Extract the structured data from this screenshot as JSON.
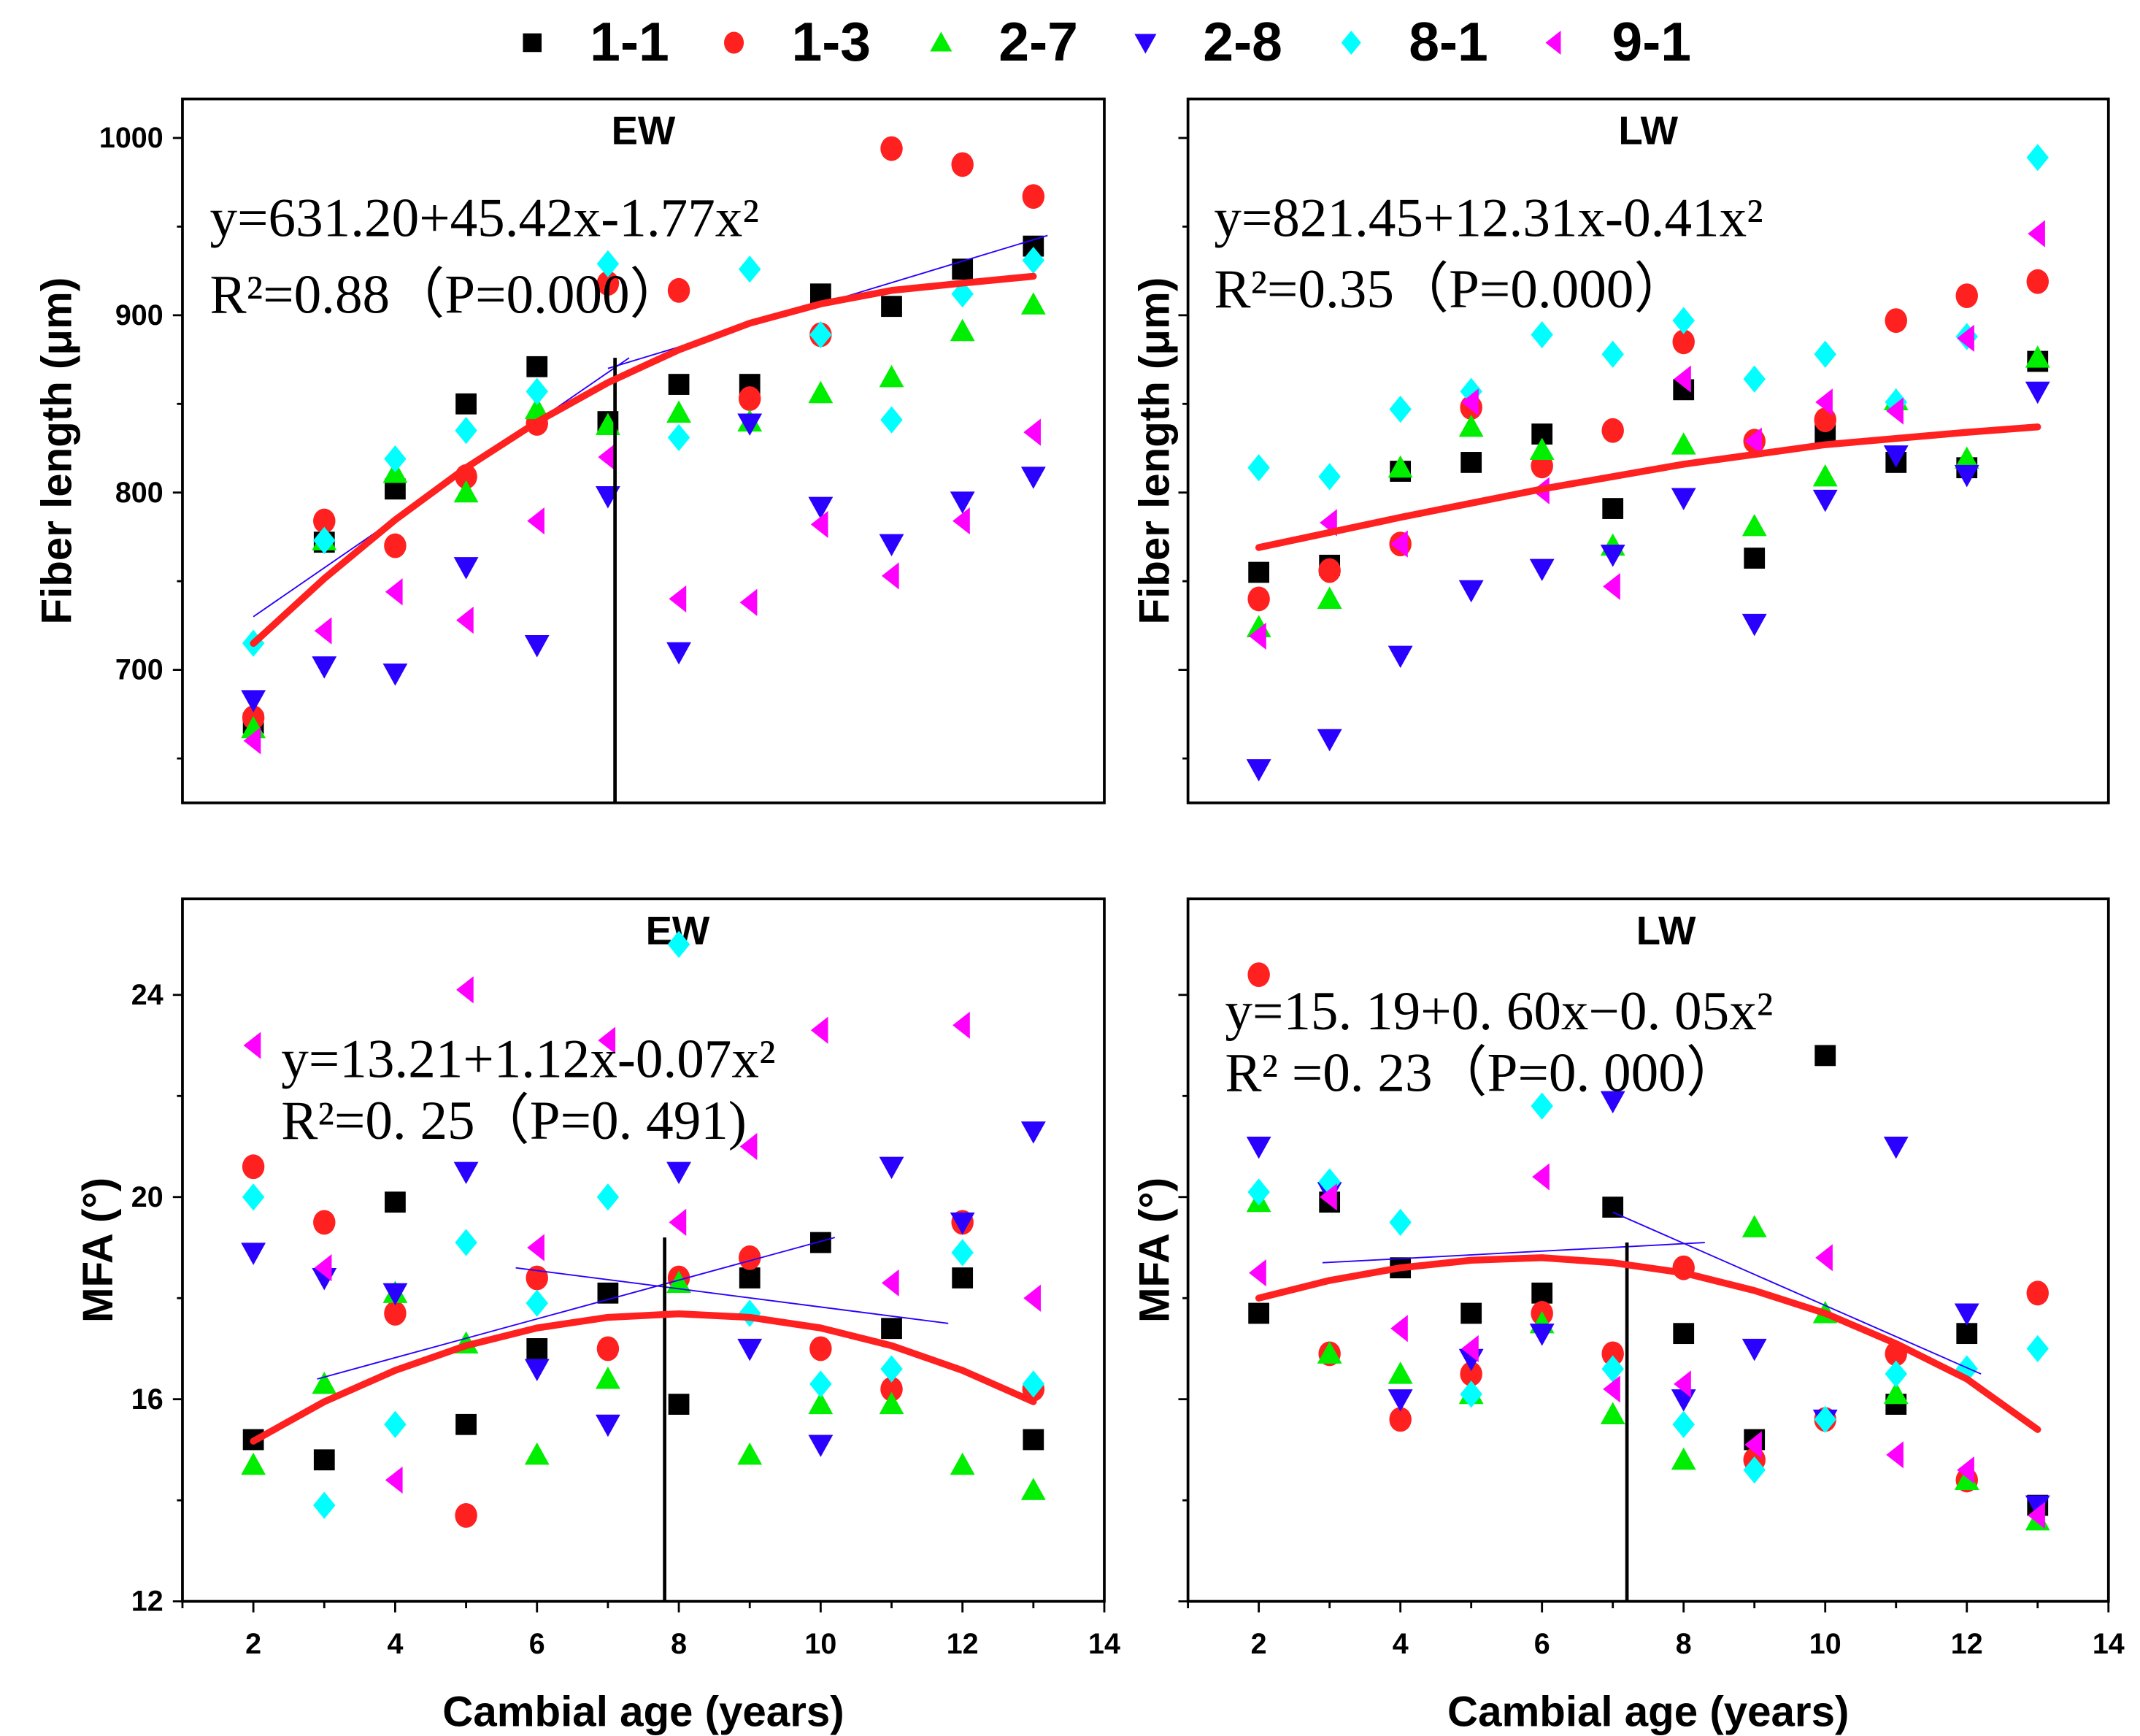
{
  "legend": [
    {
      "name": "1-1",
      "marker": "square",
      "color": "#000000"
    },
    {
      "name": "1-3",
      "marker": "circle",
      "color": "#ff2020"
    },
    {
      "name": "2-7",
      "marker": "triangle-up",
      "color": "#00ee00"
    },
    {
      "name": "2-8",
      "marker": "triangle-down",
      "color": "#2a00ff"
    },
    {
      "name": "8-1",
      "marker": "diamond",
      "color": "#00ffff"
    },
    {
      "name": "9-1",
      "marker": "triangle-left",
      "color": "#ff00ff"
    }
  ],
  "chart_data": [
    {
      "type": "scatter",
      "title": "EW",
      "xlabel": "",
      "ylabel": "Fiber length (μm)",
      "xlim": [
        1,
        14
      ],
      "ylim": [
        625,
        1022
      ],
      "xticks": [],
      "yticks": [
        "700",
        "800",
        "900",
        "1000"
      ],
      "equation": "y=631.20+45.42x-1.77x²",
      "r2": "R²=0.88（P=0.000）",
      "fit": [
        [
          2,
          714.9
        ],
        [
          3,
          751.5
        ],
        [
          4,
          784.6
        ],
        [
          5,
          814.0
        ],
        [
          6,
          839.8
        ],
        [
          7,
          862.0
        ],
        [
          8,
          880.5
        ],
        [
          9,
          895.5
        ],
        [
          10,
          906.4
        ],
        [
          11,
          914.0
        ],
        [
          12,
          918.1
        ],
        [
          13,
          922
        ]
      ],
      "segments": [
        [
          [
            2,
            730
          ],
          [
            7.3,
            876
          ]
        ],
        [
          [
            7,
            870
          ],
          [
            13.2,
            945
          ]
        ]
      ],
      "breakpoint": 7.1,
      "x": [
        2,
        3,
        4,
        5,
        6,
        7,
        8,
        9,
        10,
        11,
        12,
        13
      ],
      "series": [
        {
          "name": "1-1",
          "values": [
            670,
            772,
            802,
            850,
            871,
            840,
            861,
            861,
            912,
            905,
            926,
            939
          ]
        },
        {
          "name": "1-3",
          "values": [
            673,
            784,
            770,
            809,
            839,
            918,
            914,
            853,
            889,
            994,
            985,
            967
          ]
        },
        {
          "name": "2-7",
          "values": [
            667,
            773,
            811,
            800,
            847,
            838,
            845,
            840,
            856,
            865,
            891,
            906
          ]
        },
        {
          "name": "2-8",
          "values": [
            683,
            702,
            698,
            758,
            714,
            798,
            710,
            839,
            792,
            771,
            795,
            809
          ]
        },
        {
          "name": "8-1",
          "values": [
            715,
            773,
            819,
            835,
            857,
            929,
            831,
            926,
            889,
            841,
            912,
            931
          ]
        },
        {
          "name": "9-1",
          "values": [
            660,
            722,
            744,
            728,
            784,
            820,
            740,
            738,
            782,
            753,
            784,
            834
          ]
        }
      ]
    },
    {
      "type": "scatter",
      "title": "LW",
      "xlabel": "",
      "ylabel": "Fiber length (μm)",
      "xlim": [
        1,
        14
      ],
      "ylim": [
        625,
        1022
      ],
      "xticks": [],
      "yticks": [],
      "equation": "y=821.45+12.31x-0.41x²",
      "r2": "R²=0.35（P=0.000）",
      "fit": [
        [
          2,
          769
        ],
        [
          4,
          786
        ],
        [
          6,
          802
        ],
        [
          8,
          816
        ],
        [
          10,
          827
        ],
        [
          12,
          834
        ],
        [
          13,
          837
        ]
      ],
      "segments": [],
      "breakpoint": null,
      "x": [
        2,
        3,
        4,
        5,
        6,
        7,
        8,
        9,
        10,
        11,
        12,
        13
      ],
      "series": [
        {
          "name": "1-1",
          "values": [
            755,
            759,
            812,
            817,
            833,
            791,
            858,
            763,
            833,
            817,
            814,
            874
          ]
        },
        {
          "name": "1-3",
          "values": [
            740,
            756,
            771,
            848,
            815,
            835,
            885,
            829,
            841,
            897,
            911,
            919
          ]
        },
        {
          "name": "2-7",
          "values": [
            724,
            740,
            814,
            837,
            824,
            770,
            827,
            781,
            809,
            852,
            819,
            876
          ]
        },
        {
          "name": "2-8",
          "values": [
            644,
            661,
            708,
            745,
            757,
            765,
            797,
            726,
            796,
            821,
            810,
            857
          ]
        },
        {
          "name": "8-1",
          "values": [
            814,
            809,
            847,
            857,
            889,
            878,
            897,
            864,
            878,
            851,
            888,
            989
          ]
        },
        {
          "name": "9-1",
          "values": [
            719,
            783,
            771,
            851,
            801,
            747,
            864,
            829,
            851,
            846,
            887,
            946
          ]
        }
      ]
    },
    {
      "type": "scatter",
      "title": "EW",
      "xlabel": "Cambial age (years)",
      "ylabel": "MFA (°)",
      "xlim": [
        1,
        14
      ],
      "ylim": [
        12,
        25.9
      ],
      "xticks": [
        "2",
        "4",
        "6",
        "8",
        "10",
        "12",
        "14"
      ],
      "yticks": [
        "12",
        "16",
        "20",
        "24"
      ],
      "equation": "y=13.21+1.12x-0.07x²",
      "r2": "R²=0. 25（P=0. 491)",
      "fit": [
        [
          2,
          15.17
        ],
        [
          3,
          15.95
        ],
        [
          4,
          16.57
        ],
        [
          5,
          17.06
        ],
        [
          6,
          17.41
        ],
        [
          7,
          17.62
        ],
        [
          8,
          17.69
        ],
        [
          9,
          17.62
        ],
        [
          10,
          17.41
        ],
        [
          11,
          17.06
        ],
        [
          12,
          16.57
        ],
        [
          13,
          15.95
        ]
      ],
      "segments": [
        [
          [
            2.9,
            16.4
          ],
          [
            10.2,
            19.2
          ]
        ],
        [
          [
            5.7,
            18.6
          ],
          [
            11.8,
            17.5
          ]
        ]
      ],
      "breakpoint": 7.8,
      "x": [
        2,
        3,
        4,
        5,
        6,
        7,
        8,
        9,
        10,
        11,
        12,
        13
      ],
      "series": [
        {
          "name": "1-1",
          "values": [
            15.2,
            14.8,
            19.9,
            15.5,
            17.0,
            18.1,
            15.9,
            18.4,
            19.1,
            17.4,
            18.4,
            15.2
          ]
        },
        {
          "name": "1-3",
          "values": [
            20.6,
            19.5,
            17.7,
            13.7,
            18.4,
            17.0,
            18.4,
            18.8,
            17.0,
            16.2,
            19.5,
            16.2
          ]
        },
        {
          "name": "2-7",
          "values": [
            14.7,
            16.3,
            18.1,
            17.1,
            14.9,
            16.4,
            18.3,
            14.9,
            15.9,
            15.9,
            14.7,
            14.2
          ]
        },
        {
          "name": "2-8",
          "values": [
            18.9,
            18.4,
            18.1,
            20.5,
            16.6,
            15.5,
            20.5,
            17.0,
            15.1,
            20.6,
            19.5,
            21.3
          ]
        },
        {
          "name": "8-1",
          "values": [
            20.0,
            13.9,
            15.5,
            19.1,
            17.9,
            20.0,
            25.0,
            17.7,
            16.3,
            16.6,
            18.9,
            16.3
          ]
        },
        {
          "name": "9-1",
          "values": [
            23.0,
            18.6,
            14.4,
            24.1,
            19.0,
            23.1,
            19.5,
            21.0,
            23.3,
            18.3,
            23.4,
            18.0
          ]
        }
      ]
    },
    {
      "type": "scatter",
      "title": "LW",
      "xlabel": "Cambial age (years)",
      "ylabel": "MFA (°)",
      "xlim": [
        1,
        14
      ],
      "ylim": [
        12,
        25.9
      ],
      "xticks": [
        "2",
        "4",
        "6",
        "8",
        "10",
        "12",
        "14"
      ],
      "yticks": [],
      "equation": "y=15. 19+0. 60x−0. 05x²",
      "r2": "R² =0. 23（P=0. 000）",
      "fit": [
        [
          2,
          18.0
        ],
        [
          3,
          18.35
        ],
        [
          4,
          18.6
        ],
        [
          5,
          18.75
        ],
        [
          6,
          18.8
        ],
        [
          7,
          18.7
        ],
        [
          8,
          18.5
        ],
        [
          9,
          18.15
        ],
        [
          10,
          17.7
        ],
        [
          11,
          17.1
        ],
        [
          12,
          16.4
        ],
        [
          13,
          15.4
        ]
      ],
      "segments": [
        [
          [
            2.9,
            18.7
          ],
          [
            8.3,
            19.1
          ]
        ],
        [
          [
            7.0,
            19.7
          ],
          [
            12.2,
            16.5
          ]
        ]
      ],
      "breakpoint": 7.2,
      "x": [
        2,
        3,
        4,
        5,
        6,
        7,
        8,
        9,
        10,
        11,
        12,
        13
      ],
      "series": [
        {
          "name": "1-1",
          "values": [
            17.7,
            19.9,
            18.6,
            17.7,
            18.1,
            19.8,
            17.3,
            15.2,
            22.8,
            15.9,
            17.3,
            13.9
          ]
        },
        {
          "name": "1-3",
          "values": [
            24.4,
            16.9,
            15.6,
            16.5,
            17.7,
            16.9,
            18.6,
            14.8,
            15.6,
            16.9,
            14.4,
            18.1
          ]
        },
        {
          "name": "2-7",
          "values": [
            19.9,
            16.9,
            16.5,
            16.1,
            17.5,
            15.7,
            14.8,
            19.4,
            17.7,
            16.1,
            14.4,
            13.6
          ]
        },
        {
          "name": "2-8",
          "values": [
            21.0,
            20.1,
            16.0,
            16.8,
            17.3,
            21.9,
            16.0,
            17.0,
            15.6,
            21.0,
            17.7,
            13.9
          ]
        },
        {
          "name": "8-1",
          "values": [
            20.1,
            20.3,
            19.5,
            16.1,
            21.8,
            16.6,
            15.5,
            14.6,
            15.6,
            16.5,
            16.6,
            17.0
          ]
        },
        {
          "name": "9-1",
          "values": [
            18.5,
            20.0,
            17.4,
            17.0,
            20.4,
            16.2,
            16.3,
            15.1,
            18.8,
            14.9,
            14.6,
            13.7
          ]
        }
      ]
    }
  ]
}
